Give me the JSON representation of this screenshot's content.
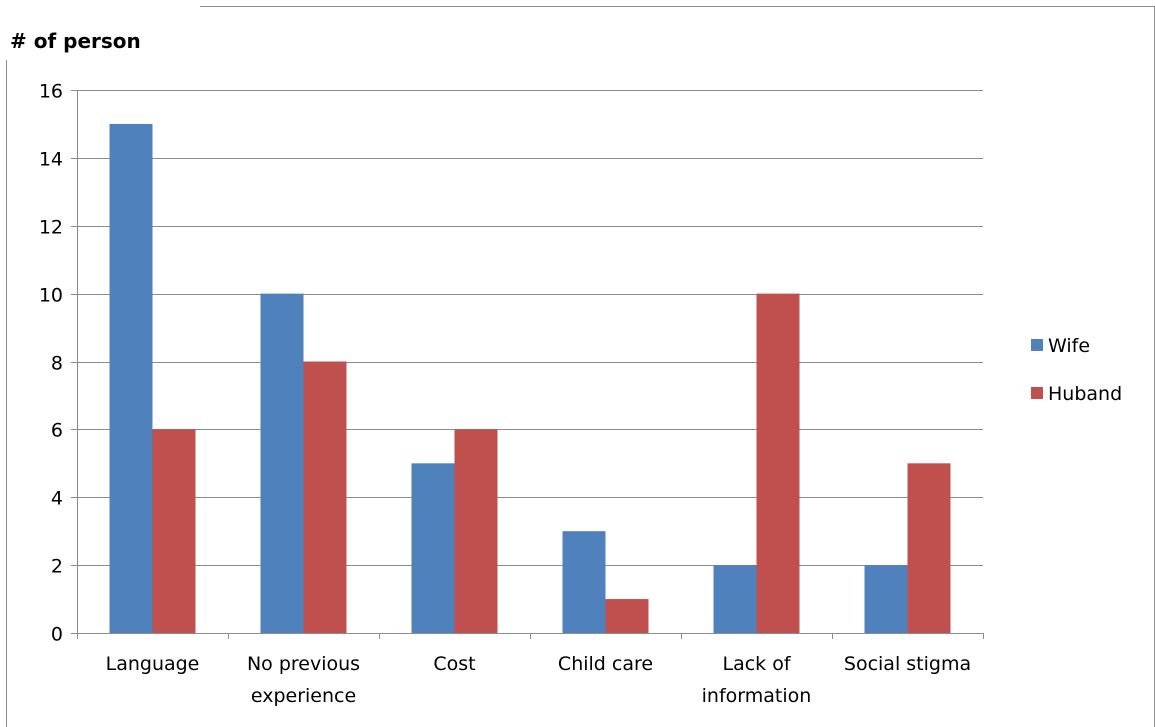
{
  "chart_data": {
    "type": "bar",
    "title": "",
    "ylabel": "# of person",
    "xlabel": "",
    "ylim": [
      0,
      16
    ],
    "yticks": [
      0,
      2,
      4,
      6,
      8,
      10,
      12,
      14,
      16
    ],
    "grid": true,
    "legend_position": "right",
    "categories": [
      [
        "Language"
      ],
      [
        "No previous",
        "experience"
      ],
      [
        "Cost"
      ],
      [
        "Child care"
      ],
      [
        "Lack of",
        "information"
      ],
      [
        "Social stigma"
      ]
    ],
    "series": [
      {
        "name": "Wife",
        "color": "#4F81BD",
        "values": [
          15,
          10,
          5,
          3,
          2,
          2
        ]
      },
      {
        "name": "Huband",
        "color": "#C0504D",
        "values": [
          6,
          8,
          6,
          1,
          10,
          5
        ]
      }
    ]
  }
}
